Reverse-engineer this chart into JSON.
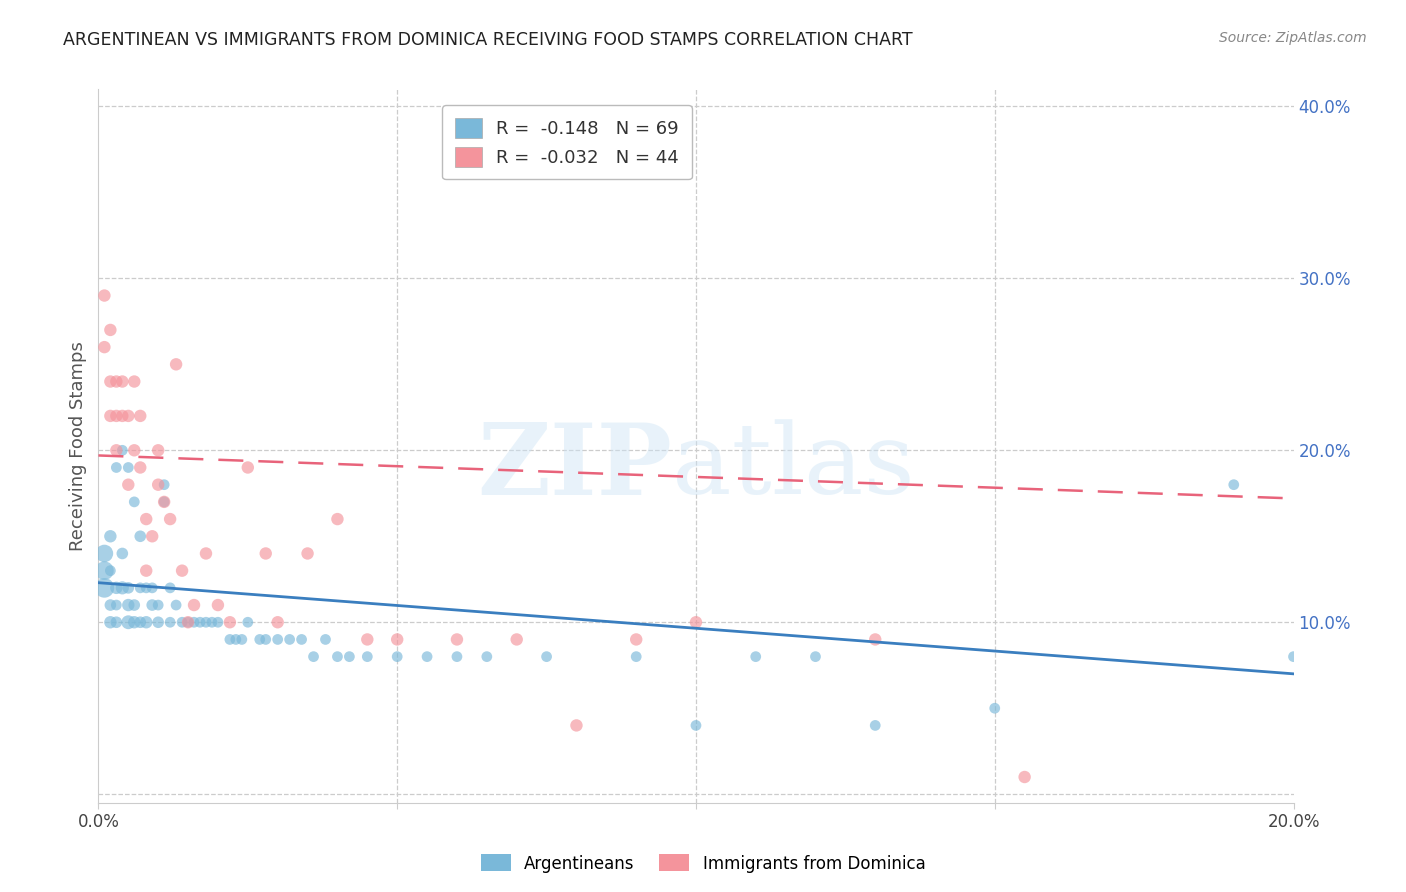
{
  "title": "ARGENTINEAN VS IMMIGRANTS FROM DOMINICA RECEIVING FOOD STAMPS CORRELATION CHART",
  "source": "Source: ZipAtlas.com",
  "ylabel": "Receiving Food Stamps",
  "blue_color": "#7ab8d9",
  "pink_color": "#f4949c",
  "blue_line_color": "#3a7ebf",
  "pink_line_color": "#e8637a",
  "legend_blue_label": "R =  -0.148   N = 69",
  "legend_pink_label": "R =  -0.032   N = 44",
  "legend1_label": "Argentineans",
  "legend2_label": "Immigrants from Dominica",
  "blue_trend_x0": 0.0,
  "blue_trend_y0": 0.123,
  "blue_trend_x1": 0.2,
  "blue_trend_y1": 0.07,
  "pink_trend_x0": 0.0,
  "pink_trend_y0": 0.197,
  "pink_trend_x1": 0.2,
  "pink_trend_y1": 0.172,
  "blue_scatter_x": [
    0.001,
    0.001,
    0.001,
    0.002,
    0.002,
    0.002,
    0.002,
    0.003,
    0.003,
    0.003,
    0.003,
    0.004,
    0.004,
    0.004,
    0.005,
    0.005,
    0.005,
    0.005,
    0.006,
    0.006,
    0.006,
    0.007,
    0.007,
    0.007,
    0.008,
    0.008,
    0.009,
    0.009,
    0.01,
    0.01,
    0.011,
    0.011,
    0.012,
    0.012,
    0.013,
    0.014,
    0.015,
    0.016,
    0.017,
    0.018,
    0.019,
    0.02,
    0.022,
    0.023,
    0.024,
    0.025,
    0.027,
    0.028,
    0.03,
    0.032,
    0.034,
    0.036,
    0.038,
    0.04,
    0.042,
    0.045,
    0.05,
    0.055,
    0.06,
    0.065,
    0.075,
    0.09,
    0.1,
    0.11,
    0.12,
    0.13,
    0.15,
    0.19,
    0.2
  ],
  "blue_scatter_y": [
    0.12,
    0.13,
    0.14,
    0.1,
    0.11,
    0.13,
    0.15,
    0.1,
    0.11,
    0.12,
    0.19,
    0.12,
    0.14,
    0.2,
    0.1,
    0.11,
    0.12,
    0.19,
    0.1,
    0.11,
    0.17,
    0.1,
    0.12,
    0.15,
    0.1,
    0.12,
    0.11,
    0.12,
    0.1,
    0.11,
    0.18,
    0.17,
    0.1,
    0.12,
    0.11,
    0.1,
    0.1,
    0.1,
    0.1,
    0.1,
    0.1,
    0.1,
    0.09,
    0.09,
    0.09,
    0.1,
    0.09,
    0.09,
    0.09,
    0.09,
    0.09,
    0.08,
    0.09,
    0.08,
    0.08,
    0.08,
    0.08,
    0.08,
    0.08,
    0.08,
    0.08,
    0.08,
    0.04,
    0.08,
    0.08,
    0.04,
    0.05,
    0.18,
    0.08
  ],
  "blue_scatter_size": [
    200,
    180,
    160,
    80,
    70,
    60,
    80,
    70,
    60,
    80,
    60,
    90,
    70,
    60,
    100,
    80,
    70,
    60,
    80,
    70,
    60,
    70,
    60,
    70,
    80,
    60,
    70,
    60,
    70,
    60,
    60,
    60,
    60,
    60,
    60,
    60,
    60,
    60,
    60,
    60,
    60,
    60,
    60,
    60,
    60,
    60,
    60,
    60,
    60,
    60,
    60,
    60,
    60,
    60,
    60,
    60,
    60,
    60,
    60,
    60,
    60,
    60,
    60,
    60,
    60,
    60,
    60,
    60,
    60
  ],
  "pink_scatter_x": [
    0.001,
    0.001,
    0.002,
    0.002,
    0.002,
    0.003,
    0.003,
    0.003,
    0.004,
    0.004,
    0.005,
    0.005,
    0.006,
    0.006,
    0.007,
    0.007,
    0.008,
    0.008,
    0.009,
    0.01,
    0.01,
    0.011,
    0.012,
    0.013,
    0.014,
    0.015,
    0.016,
    0.018,
    0.02,
    0.022,
    0.025,
    0.028,
    0.03,
    0.035,
    0.04,
    0.045,
    0.05,
    0.06,
    0.07,
    0.08,
    0.09,
    0.1,
    0.13,
    0.155
  ],
  "pink_scatter_y": [
    0.29,
    0.26,
    0.27,
    0.24,
    0.22,
    0.22,
    0.24,
    0.2,
    0.24,
    0.22,
    0.22,
    0.18,
    0.2,
    0.24,
    0.22,
    0.19,
    0.13,
    0.16,
    0.15,
    0.18,
    0.2,
    0.17,
    0.16,
    0.25,
    0.13,
    0.1,
    0.11,
    0.14,
    0.11,
    0.1,
    0.19,
    0.14,
    0.1,
    0.14,
    0.16,
    0.09,
    0.09,
    0.09,
    0.09,
    0.04,
    0.09,
    0.1,
    0.09,
    0.01
  ],
  "pink_scatter_size": [
    80,
    80,
    80,
    80,
    80,
    80,
    80,
    80,
    80,
    80,
    80,
    80,
    80,
    80,
    80,
    80,
    80,
    80,
    80,
    80,
    80,
    80,
    80,
    80,
    80,
    80,
    80,
    80,
    80,
    80,
    80,
    80,
    80,
    80,
    80,
    80,
    80,
    80,
    80,
    80,
    80,
    80,
    80,
    80
  ],
  "xlim": [
    0.0,
    0.2
  ],
  "ylim": [
    -0.005,
    0.41
  ],
  "yticks": [
    0.0,
    0.1,
    0.2,
    0.3,
    0.4
  ],
  "yticklabels_right": [
    "",
    "10.0%",
    "20.0%",
    "30.0%",
    "40.0%"
  ],
  "xticks": [
    0.0,
    0.05,
    0.1,
    0.15,
    0.2
  ],
  "xticklabels": [
    "0.0%",
    "",
    "",
    "",
    "20.0%"
  ]
}
